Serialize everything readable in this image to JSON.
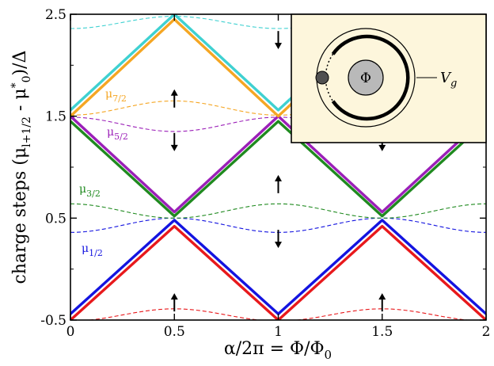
{
  "chart_data": {
    "type": "line",
    "xlabel": "α/2π = Φ/Φ0",
    "xlabel_parts": {
      "main": "α/2π = Φ/Φ",
      "sub": "0"
    },
    "ylabel": "charge steps (μl+1/2 - μ*0)/Δ",
    "ylabel_parts": {
      "pre": "charge steps (μ",
      "sub1": "l+1/2",
      "mid": " - μ",
      "sup": "*",
      "sub2": "0",
      "post": ")/Δ"
    },
    "xlim": [
      0,
      2
    ],
    "ylim": [
      -0.5,
      2.5
    ],
    "x_ticks": [
      0,
      0.5,
      1,
      1.5,
      2
    ],
    "x_tick_labels": [
      "0",
      "0.5",
      "1",
      "1.5",
      "2"
    ],
    "y_ticks": [
      -0.5,
      0.5,
      1.5,
      2.5
    ],
    "y_tick_labels": [
      "-0.5",
      "0.5",
      "1.5",
      "2.5"
    ],
    "solid_series": [
      {
        "color": "#e8191c",
        "shape": "tri",
        "min": -0.5,
        "max": 0.42,
        "phase": "min_at_integer"
      },
      {
        "color": "#1414e0",
        "shape": "tri",
        "min": -0.44,
        "max": 0.48,
        "phase": "min_at_integer"
      },
      {
        "color": "#1f8a1f",
        "shape": "tri",
        "min": 0.52,
        "max": 1.45,
        "phase": "max_at_integer"
      },
      {
        "color": "#9b1fb8",
        "shape": "tri",
        "min": 0.56,
        "max": 1.5,
        "phase": "max_at_integer"
      },
      {
        "color": "#f5a623",
        "shape": "tri",
        "min": 1.5,
        "max": 2.45,
        "phase": "min_at_integer"
      },
      {
        "color": "#3fd1d1",
        "shape": "tri",
        "min": 1.56,
        "max": 2.5,
        "phase": "min_at_integer"
      }
    ],
    "dashed_series": [
      {
        "name": "μ1/2",
        "color": "#1414e0",
        "mean": 0.43,
        "amp": 0.07,
        "peak_at": "half"
      },
      {
        "name": "μ3/2",
        "color": "#1f8a1f",
        "mean": 0.57,
        "amp": 0.07,
        "peak_at": "integer"
      },
      {
        "name": "μ5/2",
        "color": "#9b1fb8",
        "mean": 1.42,
        "amp": 0.07,
        "peak_at": "integer"
      },
      {
        "name": "μ7/2",
        "color": "#f5a623",
        "mean": 1.58,
        "amp": 0.07,
        "peak_at": "half"
      },
      {
        "color": "#e8191c",
        "mean": -0.45,
        "amp": 0.06,
        "peak_at": "half"
      },
      {
        "color": "#3fd1d1",
        "mean": 2.42,
        "amp": 0.06,
        "peak_at": "half"
      }
    ],
    "series_labels": [
      {
        "main": "μ",
        "sub": "1/2",
        "color": "#1414e0"
      },
      {
        "main": "μ",
        "sub": "3/2",
        "color": "#1f8a1f"
      },
      {
        "main": "μ",
        "sub": "5/2",
        "color": "#9b1fb8"
      },
      {
        "main": "μ",
        "sub": "7/2",
        "color": "#f5a623"
      }
    ],
    "spin_arrows": [
      {
        "x": 0.5,
        "y": -0.33,
        "dir": "up"
      },
      {
        "x": 1.5,
        "y": -0.33,
        "dir": "up"
      },
      {
        "x": 1.0,
        "y": 0.3,
        "dir": "down"
      },
      {
        "x": 1.0,
        "y": 0.83,
        "dir": "up"
      },
      {
        "x": 0.5,
        "y": 1.25,
        "dir": "down"
      },
      {
        "x": 1.5,
        "y": 1.25,
        "dir": "down"
      },
      {
        "x": 0.5,
        "y": 1.67,
        "dir": "up"
      },
      {
        "x": 1.0,
        "y": 2.25,
        "dir": "down"
      }
    ],
    "inset": {
      "background": "#fdf6dc",
      "flux_label": "Φ",
      "gate_label_main": "V",
      "gate_label_sub": "g"
    }
  }
}
